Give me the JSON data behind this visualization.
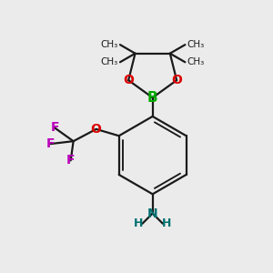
{
  "bg_color": "#ebebeb",
  "bond_color": "#1a1a1a",
  "B_color": "#00aa00",
  "O_color": "#dd0000",
  "N_color": "#007070",
  "F_color": "#bb00bb",
  "line_width": 1.6,
  "figsize": [
    3.0,
    3.0
  ],
  "dpi": 100,
  "xlim": [
    0,
    10
  ],
  "ylim": [
    0,
    10
  ]
}
